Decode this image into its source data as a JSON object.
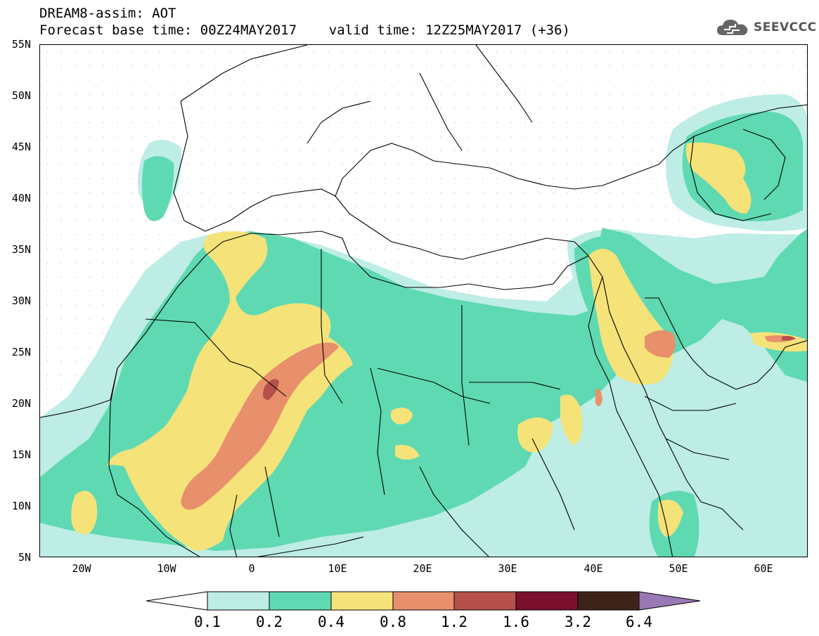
{
  "header": {
    "title_line1": "DREAM8-assim: AOT",
    "title_line2": "Forecast base time: 00Z24MAY2017    valid time: 12Z25MAY2017 (+36)",
    "logo_text": "SEEVCCC",
    "logo_icon": "cloud-icon"
  },
  "map": {
    "variable": "AOT",
    "lon_range": [
      -25,
      65
    ],
    "lat_range": [
      5,
      55
    ],
    "lat_labels": [
      "55N",
      "50N",
      "45N",
      "40N",
      "35N",
      "30N",
      "25N",
      "20N",
      "15N",
      "10N",
      "5N"
    ],
    "lon_labels": [
      "20W",
      "10W",
      "0",
      "10E",
      "20E",
      "30E",
      "40E",
      "50E",
      "60E"
    ]
  },
  "colorbar": {
    "levels": [
      "0.1",
      "0.2",
      "0.4",
      "0.8",
      "1.2",
      "1.6",
      "3.2",
      "6.4"
    ],
    "colors": [
      "#ffffff",
      "#bdede5",
      "#5fd9b2",
      "#f5e37a",
      "#e8906b",
      "#b5504a",
      "#7a0f2e",
      "#3e2418",
      "#9a78b5"
    ]
  }
}
